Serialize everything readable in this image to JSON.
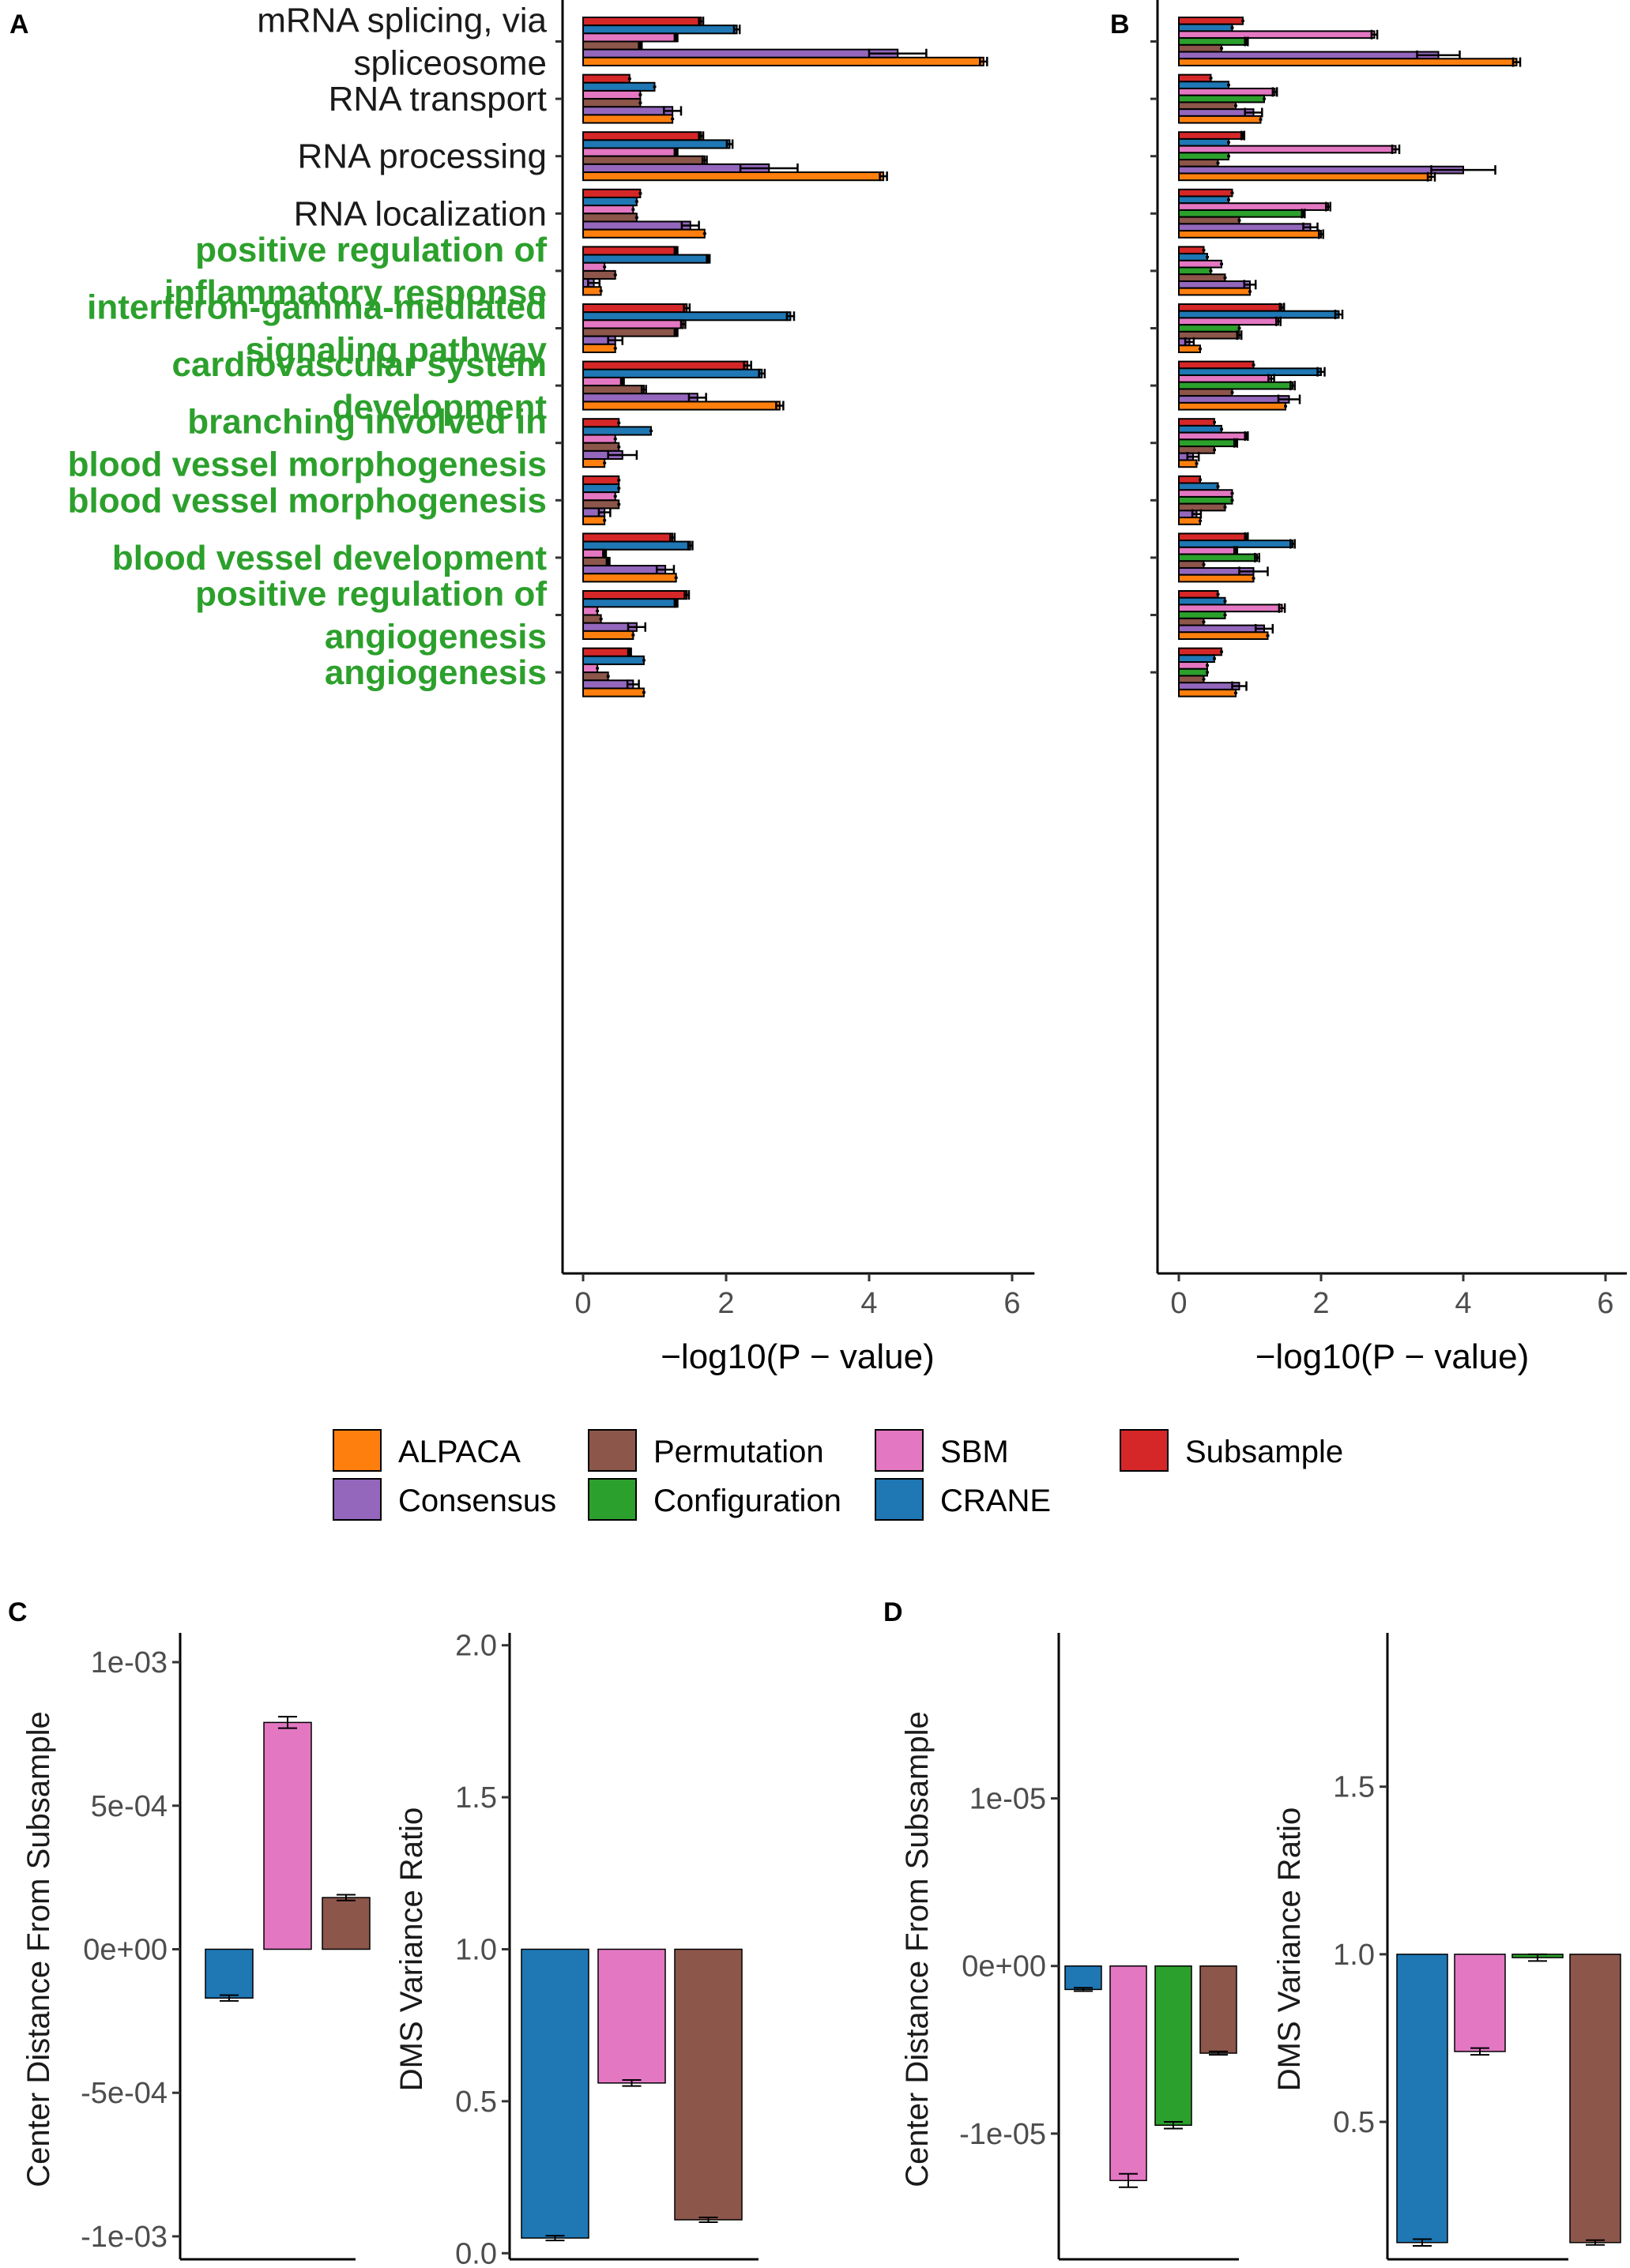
{
  "colors": {
    "ALPACA": "#ff7f0e",
    "Consensus": "#9467bd",
    "Permutation": "#8c564b",
    "Configuration": "#2ca02c",
    "SBM": "#e377c2",
    "CRANE": "#1f77b4",
    "Subsample": "#d62728",
    "green_label": "#2ca02c"
  },
  "legend": {
    "items": [
      "ALPACA",
      "Permutation",
      "SBM",
      "Subsample",
      "Consensus",
      "Configuration",
      "CRANE"
    ]
  },
  "chart_data": [
    {
      "panel": "A",
      "type": "bar",
      "orientation": "horizontal",
      "xlabel": "−log10(P − value)",
      "xlim": [
        -0.3,
        6.3
      ],
      "xticks": [
        0,
        2,
        4,
        6
      ],
      "categories": [
        {
          "label": [
            "mRNA splicing, via",
            "spliceosome"
          ],
          "green": false
        },
        {
          "label": [
            "RNA transport"
          ],
          "green": false
        },
        {
          "label": [
            "RNA processing"
          ],
          "green": false
        },
        {
          "label": [
            "RNA localization"
          ],
          "green": false
        },
        {
          "label": [
            "positive regulation of",
            "inflammatory response"
          ],
          "green": true
        },
        {
          "label": [
            "interferon-gamma-mediated",
            "signaling pathway"
          ],
          "green": true
        },
        {
          "label": [
            "cardiovascular system",
            "development"
          ],
          "green": true
        },
        {
          "label": [
            "branching involved in",
            "blood vessel morphogenesis"
          ],
          "green": true
        },
        {
          "label": [
            "blood vessel morphogenesis"
          ],
          "green": true
        },
        {
          "label": [
            "blood vessel development"
          ],
          "green": true
        },
        {
          "label": [
            "positive regulation of",
            "angiogenesis"
          ],
          "green": true
        },
        {
          "label": [
            "angiogenesis"
          ],
          "green": true
        }
      ],
      "series": [
        {
          "name": "Subsample",
          "values": [
            1.65,
            0.65,
            1.65,
            0.8,
            1.3,
            1.45,
            2.3,
            0.5,
            0.5,
            1.25,
            1.45,
            0.65
          ],
          "errors": [
            0.03,
            0,
            0.03,
            0,
            0.02,
            0.04,
            0.05,
            0,
            0,
            0.03,
            0.03,
            0.02
          ]
        },
        {
          "name": "CRANE",
          "values": [
            2.15,
            1.0,
            2.05,
            0.75,
            1.75,
            2.9,
            2.5,
            0.95,
            0.5,
            1.5,
            1.3,
            0.85
          ],
          "errors": [
            0.04,
            0,
            0.04,
            0,
            0.02,
            0.05,
            0.04,
            0,
            0,
            0.03,
            0.02,
            0
          ]
        },
        {
          "name": "SBM",
          "values": [
            1.3,
            0.8,
            1.3,
            0.7,
            0.3,
            1.4,
            0.55,
            0.45,
            0.45,
            0.3,
            0.2,
            0.2
          ],
          "errors": [
            0.02,
            0,
            0.02,
            0,
            0,
            0.03,
            0.02,
            0,
            0,
            0.02,
            0,
            0
          ]
        },
        {
          "name": "Permutation",
          "values": [
            0.8,
            0.8,
            1.7,
            0.75,
            0.45,
            1.3,
            0.85,
            0.5,
            0.5,
            0.35,
            0.25,
            0.35
          ],
          "errors": [
            0.02,
            0,
            0.03,
            0,
            0,
            0.02,
            0.03,
            0,
            0,
            0.02,
            0,
            0
          ]
        },
        {
          "name": "Consensus",
          "values": [
            4.4,
            1.25,
            2.6,
            1.5,
            0.15,
            0.45,
            1.6,
            0.55,
            0.3,
            1.15,
            0.75,
            0.7
          ],
          "errors": [
            0.4,
            0.12,
            0.4,
            0.12,
            0.08,
            0.1,
            0.12,
            0.2,
            0.08,
            0.12,
            0.12,
            0.08
          ]
        },
        {
          "name": "ALPACA",
          "values": [
            5.6,
            1.25,
            4.2,
            1.7,
            0.25,
            0.45,
            2.75,
            0.3,
            0.3,
            1.3,
            0.7,
            0.85
          ],
          "errors": [
            0.05,
            0,
            0.05,
            0,
            0,
            0,
            0.05,
            0,
            0,
            0,
            0,
            0
          ]
        }
      ]
    },
    {
      "panel": "B",
      "type": "bar",
      "orientation": "horizontal",
      "xlabel": "−log10(P − value)",
      "xlim": [
        -0.3,
        6.3
      ],
      "xticks": [
        0,
        2,
        4,
        6
      ],
      "series": [
        {
          "name": "Subsample",
          "values": [
            0.9,
            0.45,
            0.9,
            0.75,
            0.35,
            1.45,
            1.05,
            0.5,
            0.3,
            0.95,
            0.55,
            0.6
          ],
          "errors": [
            0,
            0,
            0.02,
            0,
            0,
            0.03,
            0,
            0,
            0,
            0.02,
            0,
            0
          ]
        },
        {
          "name": "CRANE",
          "values": [
            0.75,
            0.7,
            0.7,
            0.7,
            0.4,
            2.25,
            2.0,
            0.6,
            0.55,
            1.6,
            0.65,
            0.5
          ],
          "errors": [
            0,
            0,
            0,
            0,
            0,
            0.05,
            0.05,
            0,
            0,
            0.03,
            0,
            0
          ]
        },
        {
          "name": "SBM",
          "values": [
            2.75,
            1.35,
            3.05,
            2.1,
            0.6,
            1.4,
            1.3,
            0.95,
            0.75,
            0.8,
            1.45,
            0.4
          ],
          "errors": [
            0.04,
            0.03,
            0.05,
            0.03,
            0,
            0.03,
            0.04,
            0.02,
            0,
            0.02,
            0.04,
            0
          ]
        },
        {
          "name": "Configuration",
          "values": [
            0.95,
            1.2,
            0.7,
            1.75,
            0.45,
            0.85,
            1.6,
            0.8,
            0.75,
            1.1,
            0.65,
            0.4
          ],
          "errors": [
            0.02,
            0,
            0,
            0.02,
            0,
            0,
            0.03,
            0.02,
            0,
            0.03,
            0,
            0
          ]
        },
        {
          "name": "Permutation",
          "values": [
            0.6,
            0.8,
            0.55,
            0.85,
            0.65,
            0.85,
            0.75,
            0.5,
            0.65,
            0.35,
            0.35,
            0.35
          ],
          "errors": [
            0,
            0,
            0,
            0,
            0,
            0.03,
            0,
            0,
            0,
            0,
            0,
            0
          ]
        },
        {
          "name": "Consensus",
          "values": [
            3.65,
            1.05,
            4.0,
            1.85,
            1.0,
            0.15,
            1.55,
            0.2,
            0.25,
            1.05,
            1.2,
            0.85
          ],
          "errors": [
            0.3,
            0.12,
            0.45,
            0.1,
            0.08,
            0.06,
            0.15,
            0.08,
            0.06,
            0.2,
            0.12,
            0.1
          ]
        },
        {
          "name": "ALPACA",
          "values": [
            4.75,
            1.15,
            3.55,
            2.0,
            1.0,
            0.3,
            1.5,
            0.25,
            0.3,
            1.05,
            1.25,
            0.8
          ],
          "errors": [
            0.05,
            0,
            0.05,
            0.03,
            0,
            0,
            0,
            0,
            0,
            0,
            0,
            0
          ]
        }
      ]
    },
    {
      "panel": "C",
      "type": "bar",
      "subplots": [
        {
          "ylabel": "Center Distance From Subsample",
          "ylim": [
            -0.00108,
            0.00108
          ],
          "yticks": [
            "1e-03",
            "5e-04",
            "0e+00",
            "-5e-04",
            "-1e-03"
          ],
          "ytick_values": [
            0.001,
            0.0005,
            0,
            -0.0005,
            -0.001
          ],
          "series": [
            {
              "name": "CRANE",
              "value": -0.00017,
              "error": 1e-05
            },
            {
              "name": "SBM",
              "value": 0.00079,
              "error": 2e-05
            },
            {
              "name": "Permutation",
              "value": 0.00018,
              "error": 1e-05
            }
          ]
        },
        {
          "ylabel": "DMS Variance Ratio",
          "ylim": [
            -0.02,
            2.02
          ],
          "yticks": [
            "2.0",
            "1.5",
            "1.0",
            "0.5",
            "0.0"
          ],
          "ytick_values": [
            2.0,
            1.5,
            1.0,
            0.5,
            0.0
          ],
          "baseline": 1.0,
          "series": [
            {
              "name": "CRANE",
              "value": 0.05,
              "error": 0
            },
            {
              "name": "SBM",
              "value": 0.56,
              "error": 0.01
            },
            {
              "name": "Permutation",
              "value": 0.11,
              "error": 0
            }
          ]
        }
      ]
    },
    {
      "panel": "D",
      "type": "bar",
      "subplots": [
        {
          "ylabel": "Center Distance From Subsample",
          "ylim": [
            -1.75e-05,
            1.95e-05
          ],
          "yticks": [
            "1e-05",
            "0e+00",
            "-1e-05"
          ],
          "ytick_values": [
            1e-05,
            0,
            -1e-05
          ],
          "series": [
            {
              "name": "CRANE",
              "value": -1.4e-06,
              "error": 1e-07
            },
            {
              "name": "SBM",
              "value": -1.28e-05,
              "error": 4e-07
            },
            {
              "name": "Configuration",
              "value": -9.5e-06,
              "error": 2e-07
            },
            {
              "name": "Permutation",
              "value": -5.2e-06,
              "error": 1e-07
            }
          ]
        },
        {
          "ylabel": "DMS Variance Ratio",
          "ylim": [
            0.09,
            1.94
          ],
          "yticks": [
            "1.5",
            "1.0",
            "0.5"
          ],
          "ytick_values": [
            1.5,
            1.0,
            0.5
          ],
          "baseline": 1.0,
          "series": [
            {
              "name": "CRANE",
              "value": 0.14,
              "error": 0.01
            },
            {
              "name": "SBM",
              "value": 0.71,
              "error": 0.01
            },
            {
              "name": "Configuration",
              "value": 0.99,
              "error": 0.01
            },
            {
              "name": "Permutation",
              "value": 0.14,
              "error": 0
            }
          ]
        }
      ]
    }
  ]
}
